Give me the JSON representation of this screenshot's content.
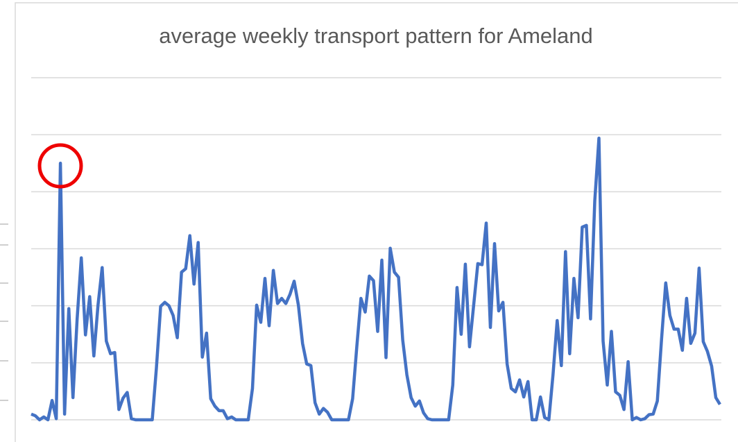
{
  "chart_data": {
    "type": "line",
    "title": "average weekly transport pattern for Ameland",
    "series": [
      {
        "color": "#4472c4",
        "values": [
          0.1,
          0.07,
          0,
          0.05,
          0,
          0.34,
          0.02,
          4.5,
          0.1,
          1.95,
          0.39,
          1.77,
          2.84,
          1.49,
          2.16,
          1.12,
          2.01,
          2.67,
          1.38,
          1.16,
          1.18,
          0.18,
          0.38,
          0.48,
          0.02,
          0,
          0,
          0,
          0,
          0,
          0.91,
          1.99,
          2.06,
          2.0,
          1.83,
          1.44,
          2.59,
          2.65,
          3.23,
          2.38,
          3.11,
          1.1,
          1.52,
          0.37,
          0.24,
          0.16,
          0.16,
          0.02,
          0.05,
          0,
          0,
          0,
          0,
          0.55,
          2.01,
          1.71,
          2.48,
          1.65,
          2.62,
          2.04,
          2.13,
          2.04,
          2.2,
          2.43,
          2.01,
          1.34,
          0.98,
          0.95,
          0.3,
          0.1,
          0.2,
          0.13,
          0,
          0,
          0,
          0,
          0,
          0.37,
          1.28,
          2.13,
          1.89,
          2.52,
          2.44,
          1.55,
          2.8,
          1.09,
          3.01,
          2.59,
          2.5,
          1.4,
          0.79,
          0.39,
          0.24,
          0.33,
          0.12,
          0.02,
          0,
          0,
          0,
          0,
          0,
          0.61,
          2.32,
          1.5,
          2.73,
          1.28,
          2.01,
          2.74,
          2.72,
          3.45,
          1.62,
          3.09,
          1.91,
          2.06,
          0.98,
          0.55,
          0.49,
          0.7,
          0.4,
          0.67,
          0,
          0,
          0.4,
          0.04,
          0,
          0.79,
          1.74,
          0.95,
          2.95,
          1.16,
          2.48,
          1.79,
          3.38,
          3.41,
          1.77,
          3.84,
          4.94,
          1.38,
          0.61,
          1.55,
          0.49,
          0.43,
          0.18,
          1.02,
          0,
          0.04,
          0,
          0.02,
          0.09,
          0.1,
          0.33,
          1.4,
          2.4,
          1.83,
          1.59,
          1.59,
          1.22,
          2.13,
          1.34,
          1.52,
          2.66,
          1.37,
          1.2,
          0.94,
          0.39,
          0.27
        ]
      }
    ],
    "ylim": [
      0,
      6
    ],
    "yticks": [
      0,
      1,
      2,
      3,
      4,
      5,
      6
    ],
    "grid": true
  }
}
